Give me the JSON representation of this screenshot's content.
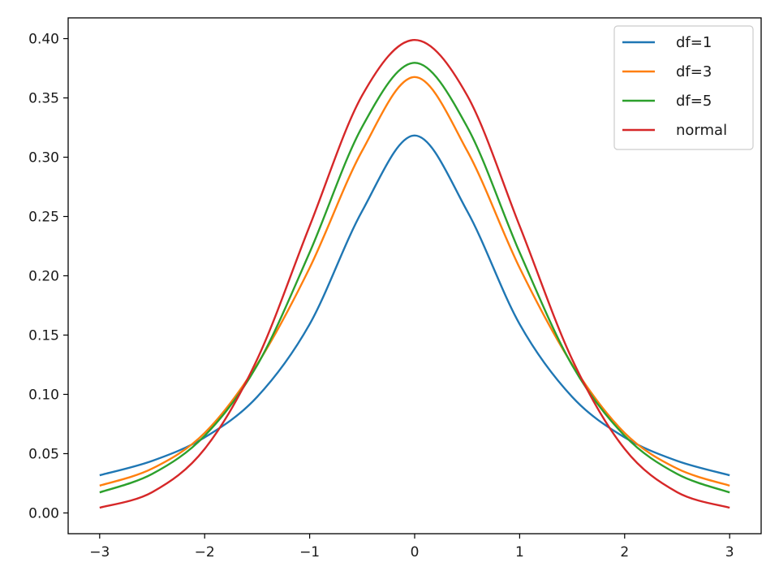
{
  "chart_data": {
    "type": "line",
    "title": "",
    "xlabel": "",
    "ylabel": "",
    "xlim": [
      -3.3,
      3.3
    ],
    "ylim": [
      -0.0175,
      0.4175
    ],
    "xticks": [
      -3,
      -2,
      -1,
      0,
      1,
      2,
      3
    ],
    "xtick_labels": [
      "−3",
      "−2",
      "−1",
      "0",
      "1",
      "2",
      "3"
    ],
    "yticks": [
      0.0,
      0.05,
      0.1,
      0.15,
      0.2,
      0.25,
      0.3,
      0.35,
      0.4
    ],
    "ytick_labels": [
      "0.00",
      "0.05",
      "0.10",
      "0.15",
      "0.20",
      "0.25",
      "0.30",
      "0.35",
      "0.40"
    ],
    "grid": false,
    "legend_position": "top-right",
    "x": [
      -3.0,
      -2.5,
      -2.0,
      -1.5,
      -1.0,
      -0.5,
      0.0,
      0.5,
      1.0,
      1.5,
      2.0,
      2.5,
      3.0
    ],
    "series": [
      {
        "name": "df=1",
        "color": "#1f77b4",
        "values": [
          0.0318,
          0.0439,
          0.0637,
          0.0979,
          0.1592,
          0.2546,
          0.3183,
          0.2546,
          0.1592,
          0.0979,
          0.0637,
          0.0439,
          0.0318
        ]
      },
      {
        "name": "df=3",
        "color": "#ff7f0e",
        "values": [
          0.023,
          0.0374,
          0.0675,
          0.1253,
          0.2067,
          0.3054,
          0.3676,
          0.3054,
          0.2067,
          0.1253,
          0.0675,
          0.0374,
          0.023
        ]
      },
      {
        "name": "df=5",
        "color": "#2ca02c",
        "values": [
          0.0173,
          0.0329,
          0.0651,
          0.1245,
          0.2197,
          0.3256,
          0.3796,
          0.3256,
          0.2197,
          0.1245,
          0.0651,
          0.0329,
          0.0173
        ]
      },
      {
        "name": "normal",
        "color": "#d62728",
        "values": [
          0.0044,
          0.0175,
          0.054,
          0.1295,
          0.242,
          0.3521,
          0.3989,
          0.3521,
          0.242,
          0.1295,
          0.054,
          0.0175,
          0.0044
        ]
      }
    ]
  }
}
